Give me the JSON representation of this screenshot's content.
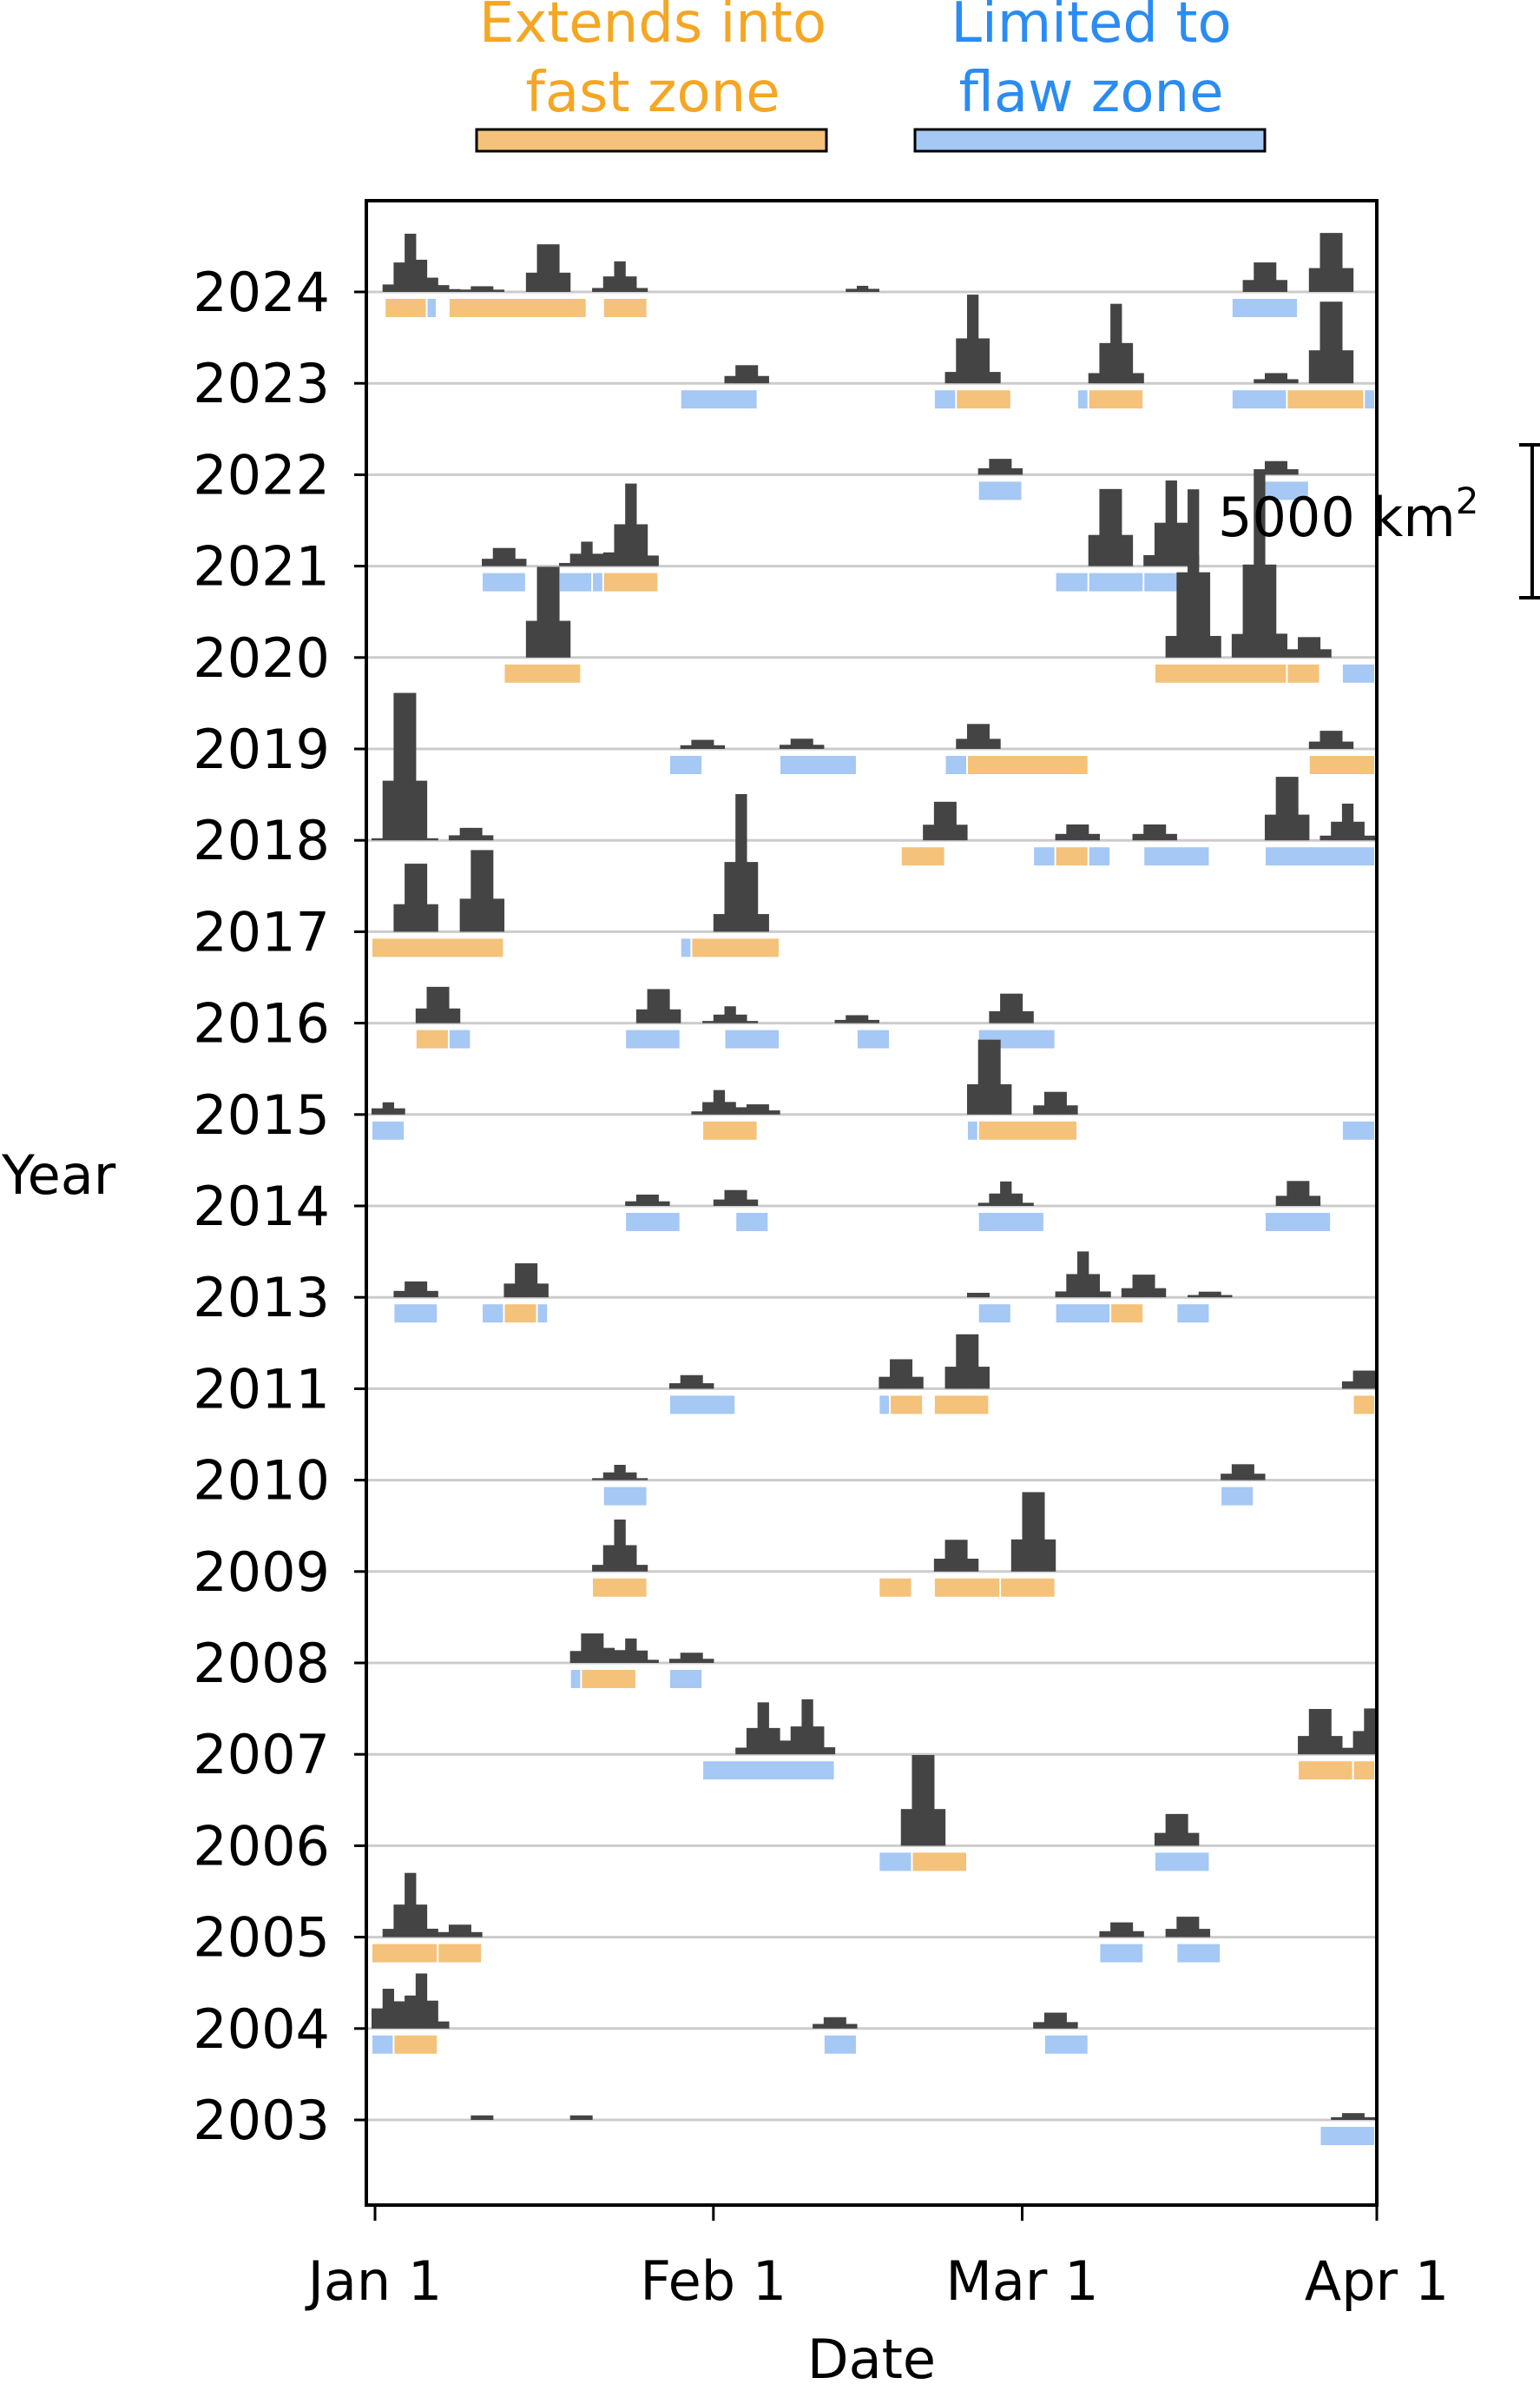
{
  "chart_data": {
    "type": "bar",
    "subtype": "stacked-ridge-histogram",
    "xlabel": "Date",
    "ylabel": "Year",
    "x_tick_labels": [
      "Jan 1",
      "Feb 1",
      "Mar 1",
      "Apr 1"
    ],
    "x_tick_days": [
      1,
      32,
      60,
      91
    ],
    "xlim_days": [
      0,
      91
    ],
    "years": [
      "2024",
      "2023",
      "2022",
      "2021",
      "2020",
      "2019",
      "2018",
      "2017",
      "2016",
      "2015",
      "2014",
      "2013",
      "2011",
      "2010",
      "2009",
      "2008",
      "2007",
      "2006",
      "2005",
      "2004",
      "2003"
    ],
    "legend": [
      {
        "label": "Extends into fast zone",
        "line1": "Extends into",
        "line2": "fast zone",
        "color": "#f4c27a",
        "text_color": "#f5a623"
      },
      {
        "label": "Limited to flaw zone",
        "line1": "Limited to",
        "line2": "flaw zone",
        "color": "#a5c8f4",
        "text_color": "#2a8cf2"
      }
    ],
    "scale_bar_label": "5000 km",
    "scale_bar_sup": "2",
    "scale_bar_km2": 5000,
    "bar_color": "#444444",
    "baseline_color": "#cccccc",
    "series": [
      {
        "year": "2024",
        "peaks": [
          [
            3.5,
            1900
          ],
          [
            6,
            300
          ],
          [
            10,
            250
          ],
          [
            16,
            2100
          ],
          [
            22.5,
            1000
          ],
          [
            44.5,
            200
          ],
          [
            81,
            1300
          ],
          [
            87,
            2600
          ]
        ],
        "events": [
          [
            1.2,
            5,
            "fast"
          ],
          [
            5,
            5.9,
            "flaw"
          ],
          [
            7,
            19.5,
            "fast"
          ],
          [
            21,
            25,
            "fast"
          ],
          [
            78,
            84,
            "flaw"
          ]
        ]
      },
      {
        "year": "2023",
        "peaks": [
          [
            34,
            800
          ],
          [
            54.5,
            2900
          ],
          [
            67.5,
            2600
          ],
          [
            82,
            450
          ],
          [
            87,
            3600
          ]
        ],
        "events": [
          [
            28,
            35,
            "flaw"
          ],
          [
            51,
            53,
            "flaw"
          ],
          [
            53,
            58,
            "fast"
          ],
          [
            64,
            65,
            "flaw"
          ],
          [
            65,
            70,
            "fast"
          ],
          [
            78,
            83,
            "flaw"
          ],
          [
            83,
            90,
            "fast"
          ],
          [
            90,
            91,
            "flaw"
          ]
        ]
      },
      {
        "year": "2022",
        "peaks": [
          [
            57,
            700
          ],
          [
            82,
            600
          ]
        ],
        "events": [
          [
            55,
            59,
            "flaw"
          ],
          [
            80,
            85,
            "flaw"
          ]
        ]
      },
      {
        "year": "2021",
        "peaks": [
          [
            12,
            800
          ],
          [
            19.5,
            800
          ],
          [
            23.5,
            2700
          ],
          [
            67,
            3400
          ],
          [
            72.5,
            2800
          ]
        ],
        "events": [
          [
            10,
            14,
            "flaw"
          ],
          [
            17,
            20,
            "flaw"
          ],
          [
            20,
            21,
            "flaw"
          ],
          [
            21,
            26,
            "fast"
          ],
          [
            62,
            65,
            "flaw"
          ],
          [
            65,
            70,
            "flaw"
          ],
          [
            70,
            76,
            "flaw"
          ]
        ]
      },
      {
        "year": "2020",
        "peaks": [
          [
            16,
            4000
          ],
          [
            74.5,
            5500
          ],
          [
            80.5,
            6000
          ],
          [
            85,
            900
          ]
        ],
        "events": [
          [
            12,
            19,
            "fast"
          ],
          [
            71,
            83,
            "fast"
          ],
          [
            83,
            86,
            "fast"
          ],
          [
            88,
            91,
            "flaw"
          ]
        ]
      },
      {
        "year": "2019",
        "peaks": [
          [
            30,
            400
          ],
          [
            39,
            450
          ],
          [
            55,
            1100
          ],
          [
            87,
            800
          ]
        ],
        "events": [
          [
            27,
            30,
            "flaw"
          ],
          [
            37,
            44,
            "flaw"
          ],
          [
            52,
            54,
            "flaw"
          ],
          [
            54,
            65,
            "fast"
          ],
          [
            85,
            91,
            "fast"
          ]
        ]
      },
      {
        "year": "2018",
        "peaks": [
          [
            3,
            6500
          ],
          [
            9,
            550
          ],
          [
            52,
            1700
          ],
          [
            64,
            700
          ],
          [
            71,
            700
          ],
          [
            83,
            2800
          ],
          [
            88.5,
            1200
          ]
        ],
        "events": [
          [
            48,
            52,
            "fast"
          ],
          [
            60,
            62,
            "flaw"
          ],
          [
            62,
            65,
            "fast"
          ],
          [
            65,
            67,
            "flaw"
          ],
          [
            70,
            76,
            "flaw"
          ],
          [
            81,
            91,
            "flaw"
          ]
        ]
      },
      {
        "year": "2017",
        "peaks": [
          [
            4,
            3000
          ],
          [
            10,
            3600
          ],
          [
            33.5,
            4500
          ]
        ],
        "events": [
          [
            0,
            12,
            "fast"
          ],
          [
            28,
            29,
            "flaw"
          ],
          [
            29,
            37,
            "fast"
          ]
        ]
      },
      {
        "year": "2016",
        "peaks": [
          [
            6,
            1600
          ],
          [
            26,
            1500
          ],
          [
            32.5,
            550
          ],
          [
            44,
            350
          ],
          [
            58,
            1300
          ]
        ],
        "events": [
          [
            4,
            7,
            "fast"
          ],
          [
            7,
            9,
            "flaw"
          ],
          [
            23,
            28,
            "flaw"
          ],
          [
            32,
            37,
            "flaw"
          ],
          [
            44,
            47,
            "flaw"
          ],
          [
            55,
            62,
            "flaw"
          ]
        ]
      },
      {
        "year": "2015",
        "peaks": [
          [
            1.5,
            400
          ],
          [
            31.5,
            800
          ],
          [
            35,
            450
          ],
          [
            56,
            3300
          ],
          [
            62,
            1000
          ]
        ],
        "events": [
          [
            0,
            3,
            "flaw"
          ],
          [
            30,
            35,
            "fast"
          ],
          [
            54,
            55,
            "flaw"
          ],
          [
            55,
            64,
            "fast"
          ],
          [
            88,
            91,
            "flaw"
          ]
        ]
      },
      {
        "year": "2014",
        "peaks": [
          [
            25,
            500
          ],
          [
            33,
            700
          ],
          [
            57.5,
            800
          ],
          [
            84,
            1100
          ]
        ],
        "events": [
          [
            23,
            28,
            "flaw"
          ],
          [
            33,
            36,
            "flaw"
          ],
          [
            55,
            61,
            "flaw"
          ],
          [
            81,
            87,
            "flaw"
          ]
        ]
      },
      {
        "year": "2013",
        "peaks": [
          [
            4,
            700
          ],
          [
            14,
            1500
          ],
          [
            55,
            200
          ],
          [
            64.5,
            1500
          ],
          [
            70,
            1000
          ],
          [
            76,
            250
          ]
        ],
        "events": [
          [
            2,
            6,
            "flaw"
          ],
          [
            10,
            12,
            "flaw"
          ],
          [
            12,
            15,
            "fast"
          ],
          [
            15,
            16,
            "flaw"
          ],
          [
            55,
            58,
            "flaw"
          ],
          [
            62,
            67,
            "flaw"
          ],
          [
            67,
            70,
            "fast"
          ],
          [
            73,
            76,
            "flaw"
          ]
        ]
      },
      {
        "year": "2011",
        "peaks": [
          [
            29,
            600
          ],
          [
            48,
            1300
          ],
          [
            54,
            2400
          ],
          [
            90,
            800
          ]
        ],
        "events": [
          [
            27,
            33,
            "flaw"
          ],
          [
            46,
            47,
            "flaw"
          ],
          [
            47,
            50,
            "fast"
          ],
          [
            51,
            56,
            "fast"
          ],
          [
            89,
            91,
            "fast"
          ]
        ]
      },
      {
        "year": "2010",
        "peaks": [
          [
            22.5,
            500
          ],
          [
            79,
            700
          ]
        ],
        "events": [
          [
            21,
            25,
            "flaw"
          ],
          [
            77,
            80,
            "flaw"
          ]
        ]
      },
      {
        "year": "2009",
        "peaks": [
          [
            22.5,
            1700
          ],
          [
            53,
            1400
          ],
          [
            60,
            3500
          ]
        ],
        "events": [
          [
            20,
            25,
            "fast"
          ],
          [
            46,
            49,
            "fast"
          ],
          [
            51,
            57,
            "fast"
          ],
          [
            57,
            62,
            "fast"
          ]
        ]
      },
      {
        "year": "2008",
        "peaks": [
          [
            20,
            1300
          ],
          [
            23.5,
            800
          ],
          [
            29,
            450
          ]
        ],
        "events": [
          [
            18,
            19,
            "flaw"
          ],
          [
            19,
            24,
            "fast"
          ],
          [
            27,
            30,
            "flaw"
          ]
        ]
      },
      {
        "year": "2007",
        "peaks": [
          [
            35.5,
            1700
          ],
          [
            39.5,
            1800
          ],
          [
            86,
            2000
          ],
          [
            90.5,
            1500
          ]
        ],
        "events": [
          [
            30,
            42,
            "flaw"
          ],
          [
            84,
            89,
            "fast"
          ],
          [
            89,
            91,
            "fast"
          ]
        ]
      },
      {
        "year": "2006",
        "peaks": [
          [
            50,
            4000
          ],
          [
            73,
            1400
          ]
        ],
        "events": [
          [
            46,
            49,
            "flaw"
          ],
          [
            49,
            54,
            "fast"
          ],
          [
            71,
            76,
            "flaw"
          ]
        ]
      },
      {
        "year": "2005",
        "peaks": [
          [
            3.5,
            2100
          ],
          [
            8,
            550
          ],
          [
            68,
            650
          ],
          [
            74,
            900
          ]
        ],
        "events": [
          [
            0,
            6,
            "fast"
          ],
          [
            6,
            10,
            "fast"
          ],
          [
            66,
            70,
            "flaw"
          ],
          [
            73,
            77,
            "flaw"
          ]
        ]
      },
      {
        "year": "2004",
        "peaks": [
          [
            1.5,
            1300
          ],
          [
            4.5,
            1800
          ],
          [
            42,
            500
          ],
          [
            62,
            700
          ]
        ],
        "events": [
          [
            0,
            2,
            "flaw"
          ],
          [
            2,
            6,
            "fast"
          ],
          [
            41,
            44,
            "flaw"
          ],
          [
            61,
            65,
            "flaw"
          ]
        ]
      },
      {
        "year": "2003",
        "peaks": [
          [
            10,
            200
          ],
          [
            19,
            200
          ],
          [
            89,
            300
          ]
        ],
        "events": [
          [
            86,
            91,
            "flaw"
          ]
        ]
      }
    ]
  }
}
